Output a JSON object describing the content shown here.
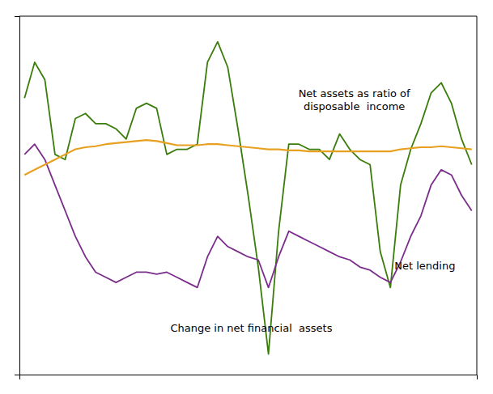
{
  "chart_data": {
    "type": "line",
    "series": [
      {
        "color": "#3a7d0a",
        "values": [
          10.0,
          13.5,
          11.8,
          4.5,
          4.0,
          8.0,
          8.5,
          7.5,
          7.5,
          7.0,
          6.0,
          9.0,
          9.5,
          9.0,
          4.5,
          5.0,
          5.0,
          5.5,
          13.5,
          15.5,
          13.0,
          7.0,
          0.5,
          -6.5,
          -15.0,
          -3.0,
          5.5,
          5.5,
          5.0,
          5.0,
          4.0,
          6.5,
          5.0,
          4.0,
          3.5,
          -5.0,
          -8.5,
          1.5,
          5.0,
          7.5,
          10.5,
          11.5,
          9.5,
          6.0,
          3.5
        ]
      },
      {
        "color": "#7b2d8b",
        "values": [
          4.5,
          5.5,
          4.0,
          1.5,
          -1.0,
          -3.5,
          -5.5,
          -7.0,
          -7.5,
          -8.0,
          -7.5,
          -7.0,
          -7.0,
          -7.2,
          -7.0,
          -7.5,
          -8.0,
          -8.5,
          -5.5,
          -3.5,
          -4.5,
          -5.0,
          -5.5,
          -5.8,
          -8.5,
          -5.5,
          -3.0,
          -3.5,
          -4.0,
          -4.5,
          -5.0,
          -5.5,
          -5.8,
          -6.5,
          -6.8,
          -7.5,
          -8.0,
          -6.0,
          -3.5,
          -1.5,
          1.5,
          3.0,
          2.5,
          0.5,
          -1.0
        ]
      },
      {
        "color": "#e8a020",
        "values": [
          2.5,
          3.0,
          3.5,
          4.0,
          4.5,
          5.0,
          5.2,
          5.3,
          5.5,
          5.6,
          5.7,
          5.8,
          5.9,
          5.8,
          5.6,
          5.4,
          5.4,
          5.4,
          5.5,
          5.5,
          5.4,
          5.3,
          5.2,
          5.1,
          5.0,
          5.0,
          4.9,
          4.9,
          4.8,
          4.8,
          4.8,
          4.8,
          4.8,
          4.8,
          4.8,
          4.8,
          4.8,
          5.0,
          5.1,
          5.2,
          5.2,
          5.3,
          5.2,
          5.1,
          5.0
        ]
      }
    ],
    "annotations": [
      "Net assets as ratio of\ndisposable  income",
      "Net lending",
      "Change in net financial  assets"
    ],
    "ylim": [
      -17,
      18
    ],
    "yticks": [],
    "grid": false,
    "tick_labels": false
  }
}
